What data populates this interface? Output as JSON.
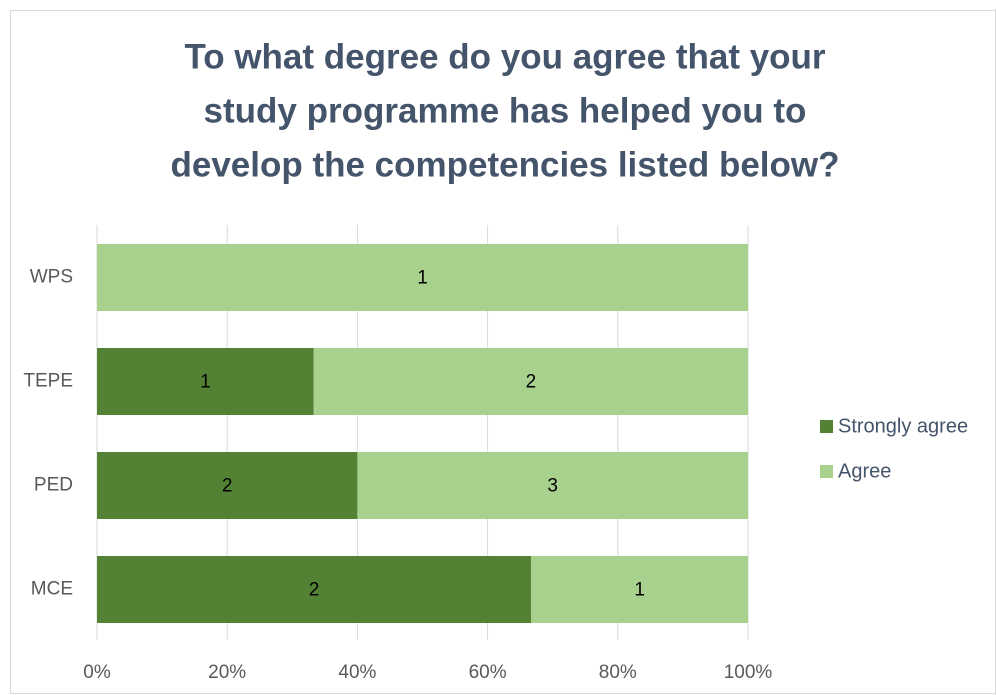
{
  "chart_data": {
    "type": "stacked_barh",
    "title": [
      "To what degree do you agree that your",
      "study programme has helped you to",
      "develop the competencies listed below?"
    ],
    "categories": [
      "WPS",
      "TEPE",
      "PED",
      "MCE"
    ],
    "series": [
      {
        "name": "Strongly agree",
        "color": "#548235",
        "values": [
          0,
          33.3,
          40,
          66.7
        ],
        "counts": [
          null,
          1,
          2,
          2
        ]
      },
      {
        "name": "Agree",
        "color": "#a9d18e",
        "values": [
          100,
          66.7,
          60,
          33.3
        ],
        "counts": [
          1,
          2,
          3,
          1
        ]
      }
    ],
    "xlim": [
      0,
      100
    ],
    "xticks": [
      {
        "value": 0,
        "label": "0%"
      },
      {
        "value": 20,
        "label": "20%"
      },
      {
        "value": 40,
        "label": "40%"
      },
      {
        "value": 60,
        "label": "60%"
      },
      {
        "value": 80,
        "label": "80%"
      },
      {
        "value": 100,
        "label": "100%"
      }
    ],
    "grid": true,
    "legend": "right"
  }
}
